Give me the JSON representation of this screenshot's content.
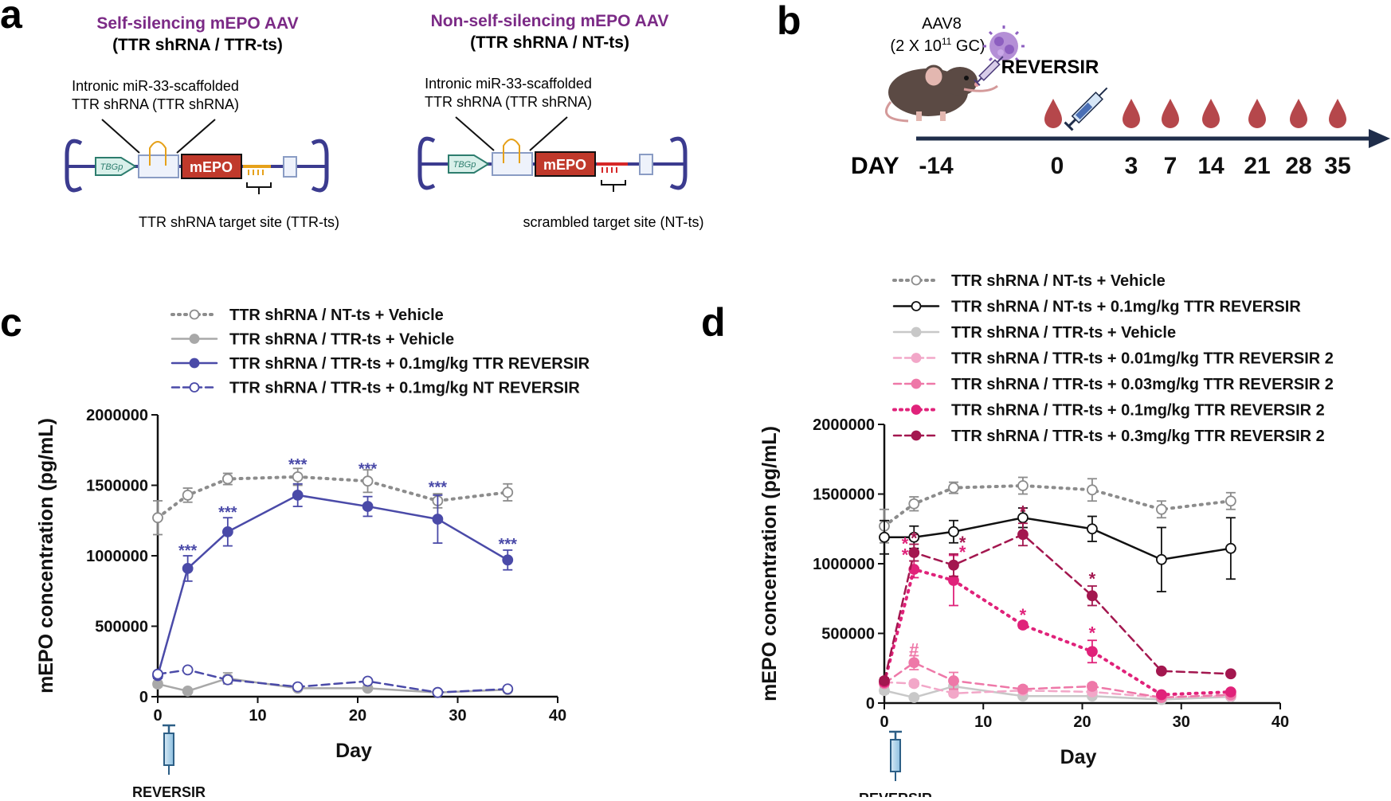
{
  "panel_labels": {
    "a": "a",
    "b": "b",
    "c": "c",
    "d": "d"
  },
  "panel_a": {
    "left": {
      "title": "Self-silencing mEPO AAV",
      "subtitle": "(TTR shRNA / TTR-ts)",
      "intronic_line1": "Intronic miR-33-scaffolded",
      "intronic_line2": "TTR shRNA (TTR shRNA)",
      "promoter": "TBGp",
      "gene": "mEPO",
      "target_label": "TTR shRNA target site (TTR-ts)"
    },
    "right": {
      "title": "Non-self-silencing mEPO AAV",
      "subtitle": "(TTR shRNA / NT-ts)",
      "intronic_line1": "Intronic miR-33-scaffolded",
      "intronic_line2": "TTR shRNA (TTR shRNA)",
      "promoter": "TBGp",
      "gene": "mEPO",
      "target_label": "scrambled target site (NT-ts)"
    },
    "colors": {
      "title": "#7b2a86",
      "vector": "#3b3b8f",
      "gene": "#c0392b",
      "ts_orange": "#e6a11a",
      "ts_red": "#d62728"
    }
  },
  "panel_b": {
    "virus_line1": "AAV8",
    "virus_line2_pre": "(2 X 10",
    "virus_line2_sup": "11",
    "virus_line2_post": " GC)",
    "reversir": "REVERSIR",
    "day_label": "DAY",
    "days": [
      "-14",
      "0",
      "3",
      "7",
      "14",
      "21",
      "28",
      "35"
    ],
    "drop_days": [
      "0",
      "3",
      "7",
      "14",
      "21",
      "28",
      "35"
    ],
    "colors": {
      "axis": "#1f2d4a",
      "drop": "#b5474b"
    }
  },
  "chart_data": [
    {
      "type": "line",
      "panel": "c",
      "xlabel": "Day",
      "ylabel": "mEPO concentration (pg/mL)",
      "xlim": [
        0,
        40
      ],
      "ylim": [
        0,
        2000000
      ],
      "xticks": [
        "0",
        "10",
        "20",
        "30",
        "40"
      ],
      "yticks": [
        "0",
        "500000",
        "1000000",
        "1500000",
        "2000000"
      ],
      "annotation": "REVERSIR",
      "series": [
        {
          "name": "TTR shRNA / NT-ts + Vehicle",
          "color": "#8c8c8c",
          "dash": "dotted",
          "marker": "open",
          "x": [
            0,
            3,
            7,
            14,
            21,
            28,
            35
          ],
          "y": [
            1270000,
            1430000,
            1545000,
            1560000,
            1530000,
            1390000,
            1450000
          ],
          "err": [
            120000,
            50000,
            40000,
            60000,
            80000,
            50000,
            60000
          ]
        },
        {
          "name": "TTR shRNA / TTR-ts +  Vehicle",
          "color": "#a8a8a8",
          "dash": "solid",
          "marker": "filled",
          "x": [
            0,
            3,
            7,
            14,
            21,
            28,
            35
          ],
          "y": [
            90000,
            40000,
            130000,
            60000,
            60000,
            30000,
            50000
          ],
          "err": [
            20000,
            10000,
            40000,
            10000,
            10000,
            10000,
            10000
          ]
        },
        {
          "name": "TTR shRNA / TTR-ts + 0.1mg/kg TTR REVERSIR",
          "color": "#4a4aa8",
          "dash": "solid",
          "marker": "filled",
          "x": [
            0,
            3,
            7,
            14,
            21,
            28,
            35
          ],
          "y": [
            150000,
            910000,
            1170000,
            1430000,
            1350000,
            1260000,
            970000
          ],
          "err": [
            20000,
            90000,
            100000,
            80000,
            70000,
            170000,
            70000
          ]
        },
        {
          "name": "TTR shRNA / TTR-ts + 0.1mg/kg NT REVERSIR",
          "color": "#4a4aa8",
          "dash": "dashed",
          "marker": "open",
          "x": [
            0,
            3,
            7,
            14,
            21,
            28,
            35
          ],
          "y": [
            160000,
            190000,
            120000,
            70000,
            110000,
            30000,
            55000
          ],
          "err": [
            10000,
            10000,
            20000,
            10000,
            10000,
            10000,
            10000
          ]
        }
      ],
      "significance": [
        {
          "x": 3,
          "y": 1000000,
          "text": "***"
        },
        {
          "x": 7,
          "y": 1270000,
          "text": "***"
        },
        {
          "x": 14,
          "y": 1610000,
          "text": "***"
        },
        {
          "x": 21,
          "y": 1580000,
          "text": "***"
        },
        {
          "x": 28,
          "y": 1450000,
          "text": "***"
        },
        {
          "x": 35,
          "y": 1045000,
          "text": "***"
        }
      ]
    },
    {
      "type": "line",
      "panel": "d",
      "xlabel": "Day",
      "ylabel": "mEPO concentration (pg/mL)",
      "xlim": [
        0,
        40
      ],
      "ylim": [
        0,
        2000000
      ],
      "xticks": [
        "0",
        "10",
        "20",
        "30",
        "40"
      ],
      "yticks": [
        "0",
        "500000",
        "1000000",
        "1500000",
        "2000000"
      ],
      "annotation": "REVERSIR",
      "series": [
        {
          "name": "TTR shRNA / NT-ts + Vehicle",
          "color": "#8c8c8c",
          "dash": "dotted",
          "marker": "open",
          "x": [
            0,
            3,
            7,
            14,
            21,
            28,
            35
          ],
          "y": [
            1270000,
            1430000,
            1545000,
            1560000,
            1530000,
            1390000,
            1450000
          ],
          "err": [
            120000,
            50000,
            40000,
            60000,
            80000,
            60000,
            60000
          ]
        },
        {
          "name": "TTR shRNA / NT-ts +  0.1mg/kg TTR REVERSIR",
          "color": "#111111",
          "dash": "solid",
          "marker": "open",
          "x": [
            0,
            3,
            7,
            14,
            21,
            28,
            35
          ],
          "y": [
            1190000,
            1190000,
            1230000,
            1330000,
            1250000,
            1030000,
            1110000
          ],
          "err": [
            120000,
            80000,
            80000,
            70000,
            90000,
            230000,
            220000
          ]
        },
        {
          "name": "TTR shRNA / TTR-ts +  Vehicle",
          "color": "#c8c8c8",
          "dash": "solid",
          "marker": "filled",
          "x": [
            0,
            3,
            7,
            14,
            21,
            28,
            35
          ],
          "y": [
            90000,
            40000,
            120000,
            50000,
            50000,
            25000,
            45000
          ],
          "err": [
            20000,
            10000,
            40000,
            10000,
            10000,
            10000,
            10000
          ]
        },
        {
          "name": "TTR shRNA / TTR-ts  + 0.01mg/kg TTR  REVERSIR 2",
          "color": "#f2a7c8",
          "dash": "dashed",
          "marker": "filled",
          "x": [
            0,
            3,
            7,
            14,
            21,
            28,
            35
          ],
          "y": [
            150000,
            140000,
            70000,
            90000,
            80000,
            40000,
            50000
          ],
          "err": [
            10000,
            20000,
            20000,
            10000,
            10000,
            10000,
            10000
          ]
        },
        {
          "name": "TTR shRNA / TTR-ts + 0.03mg/kg TTR REVERSIR 2",
          "color": "#ee78a8",
          "dash": "dashed",
          "marker": "filled",
          "x": [
            0,
            3,
            7,
            14,
            21,
            28,
            35
          ],
          "y": [
            140000,
            290000,
            160000,
            100000,
            120000,
            40000,
            60000
          ],
          "err": [
            20000,
            50000,
            60000,
            20000,
            20000,
            10000,
            10000
          ]
        },
        {
          "name": "TTR shRNA / TTR-ts + 0.1mg/kg TTR REVERSIR 2",
          "color": "#e0227a",
          "dash": "dotted",
          "marker": "filled",
          "x": [
            0,
            3,
            7,
            14,
            21,
            28,
            35
          ],
          "y": [
            150000,
            960000,
            880000,
            560000,
            370000,
            60000,
            80000
          ],
          "err": [
            20000,
            60000,
            180000,
            20000,
            80000,
            10000,
            10000
          ]
        },
        {
          "name": "TTR shRNA / TTR-ts + 0.3mg/kg TTR  REVERSIR 2",
          "color": "#a3174f",
          "dash": "dashed",
          "marker": "filled",
          "x": [
            0,
            3,
            7,
            14,
            21,
            28,
            35
          ],
          "y": [
            160000,
            1080000,
            990000,
            1210000,
            770000,
            230000,
            210000
          ],
          "err": [
            20000,
            60000,
            80000,
            80000,
            70000,
            10000,
            10000
          ]
        }
      ],
      "significance": [
        {
          "x": 3,
          "y": 1140000,
          "text": "*",
          "color": "#a3174f"
        },
        {
          "x": 2.1,
          "y": 1100000,
          "text": "*",
          "color": "#e0227a"
        },
        {
          "x": 2.1,
          "y": 1020000,
          "text": "*",
          "color": "#e0227a"
        },
        {
          "x": 7.9,
          "y": 1110000,
          "text": "*",
          "color": "#a3174f"
        },
        {
          "x": 7.9,
          "y": 1040000,
          "text": "*",
          "color": "#e0227a"
        },
        {
          "x": 14,
          "y": 1330000,
          "text": "*",
          "color": "#a3174f"
        },
        {
          "x": 21,
          "y": 850000,
          "text": "*",
          "color": "#a3174f"
        },
        {
          "x": 14,
          "y": 590000,
          "text": "*",
          "color": "#e0227a"
        },
        {
          "x": 21,
          "y": 460000,
          "text": "*",
          "color": "#e0227a"
        },
        {
          "x": 3,
          "y": 340000,
          "text": "#",
          "color": "#ee78a8"
        }
      ]
    }
  ]
}
